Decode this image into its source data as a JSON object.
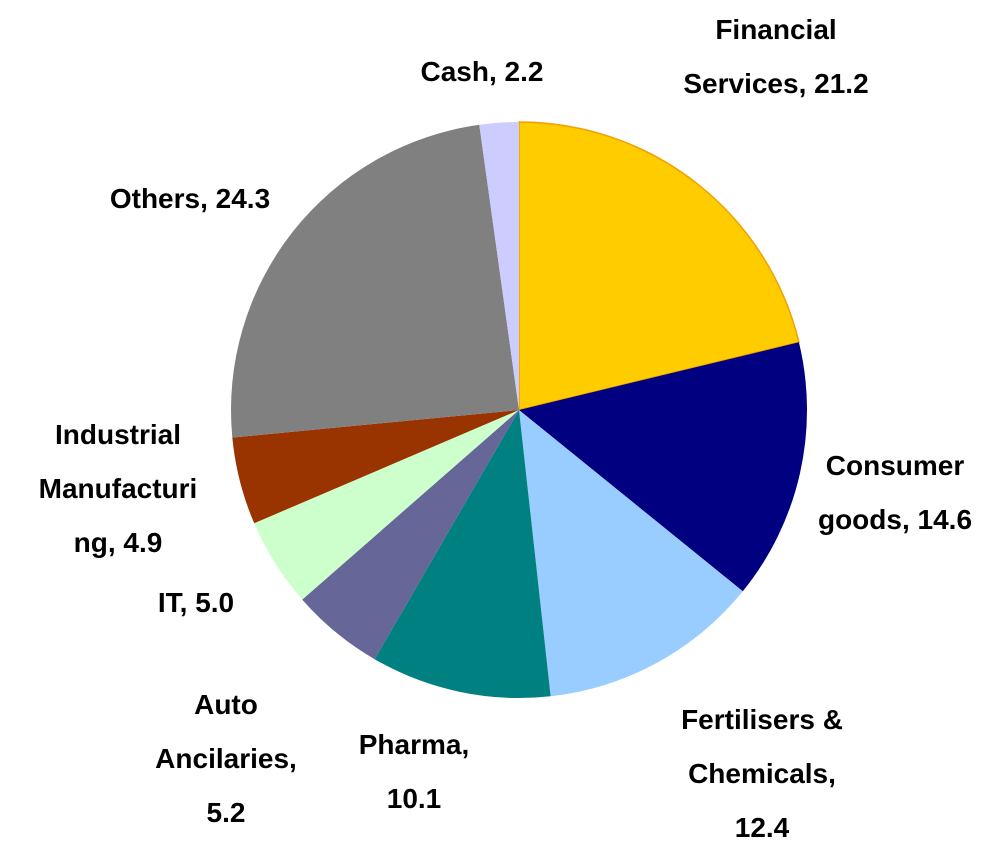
{
  "chart_data": {
    "type": "pie",
    "categories": [
      "Financial Services,",
      "Consumer goods,",
      "Fertilisers & Chemicals,",
      "Pharma,",
      "Auto Ancilaries,",
      "IT,",
      "Industrial Manufacturing,",
      "Others,",
      "Cash,"
    ],
    "values": [
      21.2,
      14.6,
      12.4,
      10.1,
      5.2,
      5.0,
      4.9,
      24.3,
      2.2
    ],
    "value_labels": [
      "21.2",
      "14.6",
      "12.4",
      "10.1",
      "5.2",
      "5.0",
      "4.9",
      "24.3",
      "2.2"
    ],
    "colors": [
      "#ffcc00",
      "#000080",
      "#99ccff",
      "#008080",
      "#666699",
      "#ccffcc",
      "#993300",
      "#808080",
      "#ccccff"
    ]
  }
}
